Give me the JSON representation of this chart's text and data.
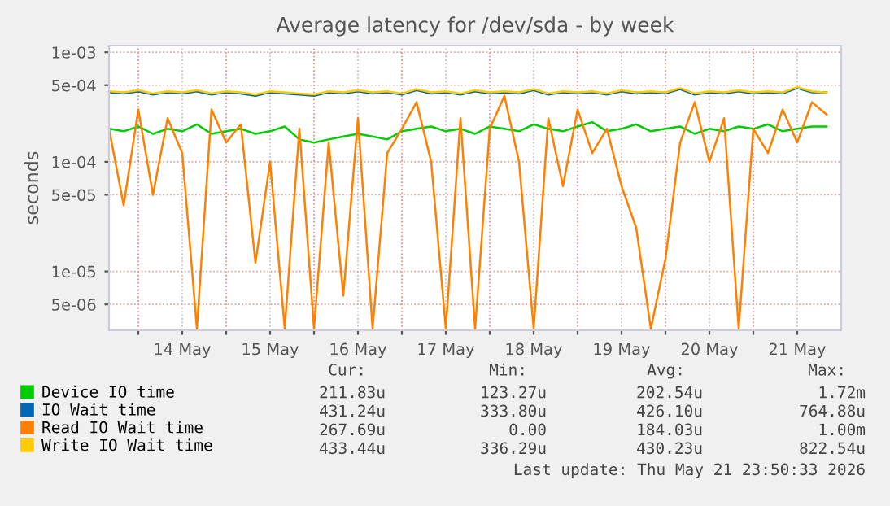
{
  "chart_data": {
    "type": "line",
    "title": "Average latency for /dev/sda - by week",
    "ylabel": "seconds",
    "log": "y",
    "grid": true,
    "legend": "bottom",
    "marker": "none",
    "line_style": "solid",
    "x": [
      "2026-05-13T16:00",
      "2026-05-13T20:00",
      "2026-05-14T00:00",
      "2026-05-14T04:00",
      "2026-05-14T08:00",
      "2026-05-14T12:00",
      "2026-05-14T16:00",
      "2026-05-14T20:00",
      "2026-05-15T00:00",
      "2026-05-15T04:00",
      "2026-05-15T08:00",
      "2026-05-15T12:00",
      "2026-05-15T16:00",
      "2026-05-15T20:00",
      "2026-05-16T00:00",
      "2026-05-16T04:00",
      "2026-05-16T08:00",
      "2026-05-16T12:00",
      "2026-05-16T16:00",
      "2026-05-16T20:00",
      "2026-05-17T00:00",
      "2026-05-17T04:00",
      "2026-05-17T08:00",
      "2026-05-17T12:00",
      "2026-05-17T16:00",
      "2026-05-17T20:00",
      "2026-05-18T00:00",
      "2026-05-18T04:00",
      "2026-05-18T08:00",
      "2026-05-18T12:00",
      "2026-05-18T16:00",
      "2026-05-18T20:00",
      "2026-05-19T00:00",
      "2026-05-19T04:00",
      "2026-05-19T08:00",
      "2026-05-19T12:00",
      "2026-05-19T16:00",
      "2026-05-19T20:00",
      "2026-05-20T00:00",
      "2026-05-20T04:00",
      "2026-05-20T08:00",
      "2026-05-20T12:00",
      "2026-05-20T16:00",
      "2026-05-20T20:00",
      "2026-05-21T00:00",
      "2026-05-21T04:00",
      "2026-05-21T08:00",
      "2026-05-21T12:00",
      "2026-05-21T16:00",
      "2026-05-21T20:00"
    ],
    "series": [
      {
        "name": "Device IO time",
        "color": "#00cc00",
        "values": [
          0.0002,
          0.00019,
          0.00021,
          0.00018,
          0.0002,
          0.00019,
          0.00022,
          0.00018,
          0.00019,
          0.0002,
          0.00018,
          0.00019,
          0.00021,
          0.00016,
          0.00015,
          0.00016,
          0.00017,
          0.00018,
          0.00017,
          0.00016,
          0.00019,
          0.0002,
          0.00021,
          0.00019,
          0.0002,
          0.00018,
          0.00021,
          0.0002,
          0.00019,
          0.00022,
          0.0002,
          0.00019,
          0.00021,
          0.00023,
          0.00019,
          0.0002,
          0.00022,
          0.00019,
          0.0002,
          0.00021,
          0.00018,
          0.0002,
          0.00019,
          0.00021,
          0.0002,
          0.00022,
          0.00019,
          0.0002,
          0.00021,
          0.00021
        ]
      },
      {
        "name": "IO Wait time",
        "color": "#0066b3",
        "values": [
          0.00043,
          0.00042,
          0.00044,
          0.00041,
          0.00043,
          0.00042,
          0.00044,
          0.00041,
          0.00043,
          0.00042,
          0.0004,
          0.00043,
          0.00042,
          0.00041,
          0.0004,
          0.00043,
          0.00042,
          0.00044,
          0.00042,
          0.00043,
          0.00041,
          0.00045,
          0.00042,
          0.00043,
          0.00041,
          0.00044,
          0.00042,
          0.00043,
          0.00042,
          0.00045,
          0.00041,
          0.00043,
          0.00042,
          0.00043,
          0.00041,
          0.00044,
          0.00042,
          0.00043,
          0.00042,
          0.00046,
          0.00041,
          0.00043,
          0.00042,
          0.00044,
          0.00042,
          0.00043,
          0.00042,
          0.00047,
          0.00043,
          0.00043
        ]
      },
      {
        "name": "Read IO Wait time",
        "color": "#ff8000",
        "values": [
          0.0002,
          4e-05,
          0.0003,
          5e-05,
          0.00025,
          0.00012,
          3e-06,
          0.0003,
          0.00015,
          0.00022,
          1.2e-05,
          0.0001,
          3e-06,
          0.0002,
          3e-06,
          0.00015,
          6e-06,
          0.00025,
          3e-06,
          0.00012,
          0.0002,
          0.00035,
          0.0001,
          3e-06,
          0.00025,
          3e-06,
          0.0002,
          0.0004,
          0.0001,
          3e-06,
          0.00025,
          6e-05,
          0.0003,
          0.00012,
          0.0002,
          6e-05,
          2.5e-05,
          3e-06,
          1.3e-05,
          0.00015,
          0.00035,
          0.0001,
          0.00025,
          3e-06,
          0.0002,
          0.00012,
          0.0003,
          0.00015,
          0.00035,
          0.00027
        ]
      },
      {
        "name": "Write IO Wait time",
        "color": "#ffcc00",
        "values": [
          0.00044,
          0.00043,
          0.00045,
          0.00042,
          0.00044,
          0.00043,
          0.00045,
          0.00042,
          0.00044,
          0.00043,
          0.00041,
          0.00044,
          0.00043,
          0.00042,
          0.00041,
          0.00044,
          0.00043,
          0.00045,
          0.00043,
          0.00044,
          0.00042,
          0.00046,
          0.00043,
          0.00044,
          0.00042,
          0.00045,
          0.00043,
          0.00044,
          0.00043,
          0.00046,
          0.00042,
          0.00044,
          0.00043,
          0.00044,
          0.00042,
          0.00045,
          0.00043,
          0.00044,
          0.00043,
          0.00047,
          0.00042,
          0.00044,
          0.00043,
          0.00045,
          0.00043,
          0.00044,
          0.00043,
          0.00048,
          0.00044,
          0.00043
        ]
      }
    ],
    "xlim": [
      "2026-05-13T16:00",
      "2026-05-22T00:00"
    ],
    "xticks": [
      {
        "value": "2026-05-14T00:00",
        "label": null
      },
      {
        "value": "2026-05-14T12:00",
        "label": "14 May"
      },
      {
        "value": "2026-05-15T00:00",
        "label": null
      },
      {
        "value": "2026-05-15T12:00",
        "label": "15 May"
      },
      {
        "value": "2026-05-16T00:00",
        "label": null
      },
      {
        "value": "2026-05-16T12:00",
        "label": "16 May"
      },
      {
        "value": "2026-05-17T00:00",
        "label": null
      },
      {
        "value": "2026-05-17T12:00",
        "label": "17 May"
      },
      {
        "value": "2026-05-18T00:00",
        "label": null
      },
      {
        "value": "2026-05-18T12:00",
        "label": "18 May"
      },
      {
        "value": "2026-05-19T00:00",
        "label": null
      },
      {
        "value": "2026-05-19T12:00",
        "label": "19 May"
      },
      {
        "value": "2026-05-20T00:00",
        "label": null
      },
      {
        "value": "2026-05-20T12:00",
        "label": "20 May"
      },
      {
        "value": "2026-05-21T00:00",
        "label": null
      },
      {
        "value": "2026-05-21T12:00",
        "label": "21 May"
      }
    ],
    "ylim": [
      2.9e-06,
      0.00115
    ],
    "yticks": [
      {
        "value": 5e-06,
        "label": "5e-06"
      },
      {
        "value": 1e-05,
        "label": "1e-05"
      },
      {
        "value": 5e-05,
        "label": "5e-05"
      },
      {
        "value": 0.0001,
        "label": "1e-04"
      },
      {
        "value": 0.0005,
        "label": "5e-04"
      },
      {
        "value": 0.001,
        "label": "1e-03"
      }
    ],
    "annotations": [
      "Cur:",
      "Min:",
      "Avg:",
      "Max:",
      "211.83u",
      "123.27u",
      "202.54u",
      "1.72m",
      "431.24u",
      "333.80u",
      "426.10u",
      "764.88u",
      "267.69u",
      "0.00",
      "184.03u",
      "1.00m",
      "433.44u",
      "336.29u",
      "430.23u",
      "822.54u",
      "Last update: Thu May 21 23:50:33 2026"
    ]
  }
}
